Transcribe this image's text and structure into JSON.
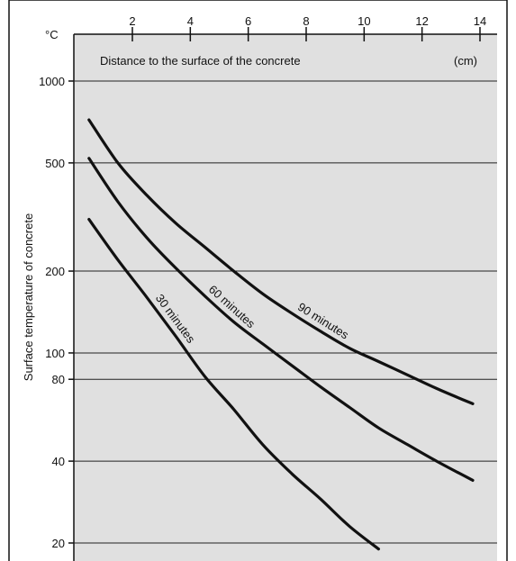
{
  "chart_data": {
    "type": "line",
    "title": "",
    "xlabel": "Distance to the surface of the concrete",
    "x_unit": "(cm)",
    "ylabel": "Surface temperature of concrete",
    "y_unit": "°C",
    "xlim": [
      0,
      14.5
    ],
    "ylim": [
      20,
      1000
    ],
    "y_scale": "log",
    "x_ticks": [
      "2",
      "4",
      "6",
      "8",
      "10",
      "12",
      "14"
    ],
    "y_ticks": [
      "1000",
      "500",
      "200",
      "100",
      "80",
      "40",
      "20"
    ],
    "x_axis_position": "top",
    "grid": "horizontal",
    "background": "#e0e0e0",
    "line_color": "#111111",
    "series": [
      {
        "name": "30 minutes",
        "x": [
          0.5,
          1.5,
          2.5,
          3.5,
          4.5,
          5.5,
          6.5,
          7.5,
          8.5,
          9.5,
          10.5
        ],
        "y": [
          310,
          220,
          160,
          115,
          82,
          62,
          46,
          36,
          29,
          23,
          19
        ]
      },
      {
        "name": "60 minutes",
        "x": [
          0.5,
          1.5,
          2.5,
          3.5,
          4.5,
          5.5,
          6.5,
          7.5,
          8.5,
          9.5,
          10.5,
          11.5,
          12.5,
          13.75
        ],
        "y": [
          520,
          360,
          265,
          205,
          162,
          130,
          108,
          90,
          75,
          63,
          53,
          46,
          40,
          34
        ]
      },
      {
        "name": "90 minutes",
        "x": [
          0.5,
          1.5,
          2.5,
          3.5,
          4.5,
          5.5,
          6.5,
          7.5,
          8.5,
          9.5,
          10.5,
          11.5,
          12.5,
          13.75
        ],
        "y": [
          720,
          500,
          380,
          300,
          245,
          200,
          165,
          140,
          120,
          104,
          93,
          83,
          74,
          65
        ]
      }
    ]
  }
}
